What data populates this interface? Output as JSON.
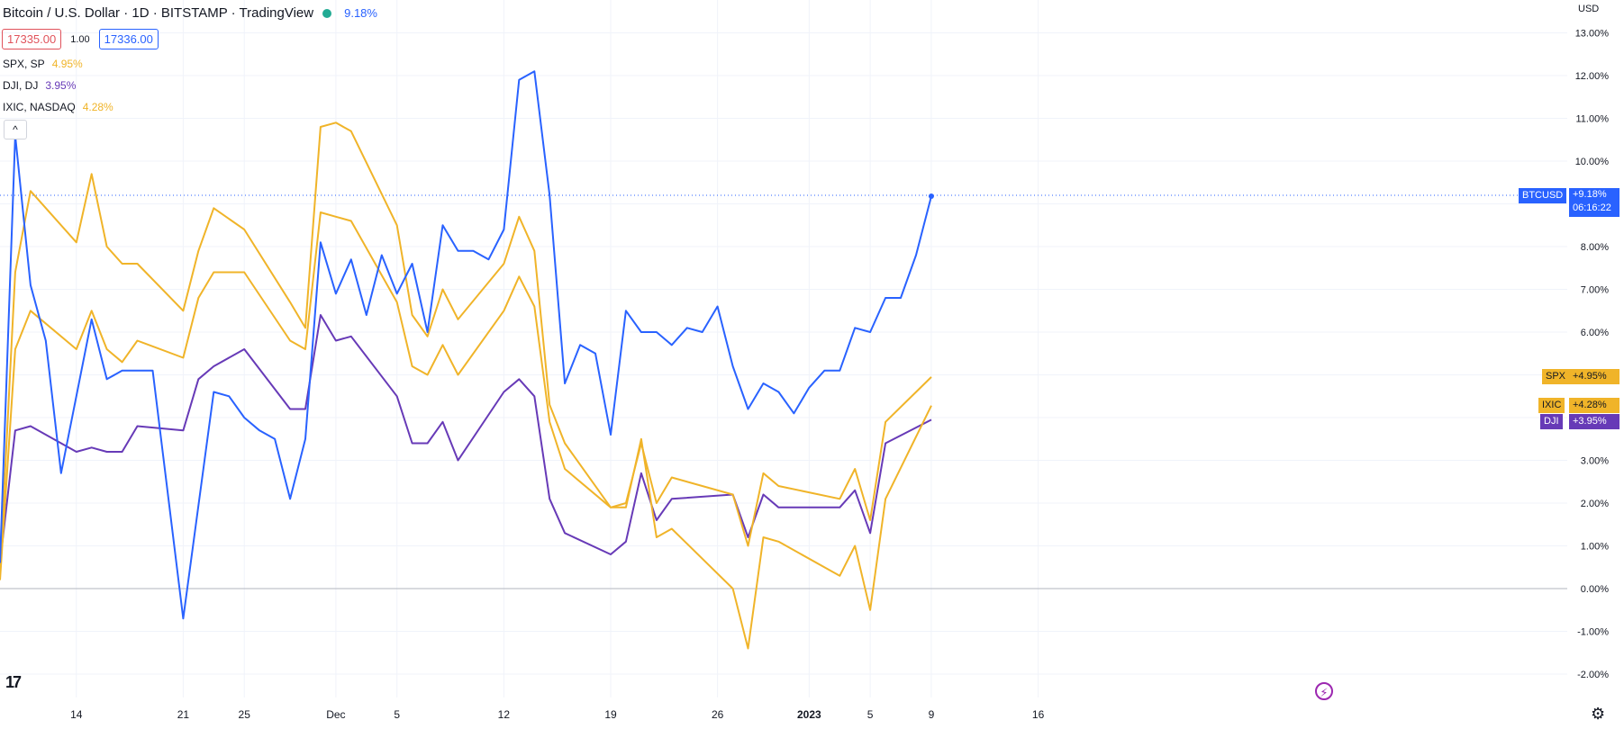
{
  "header": {
    "title": "Bitcoin / U.S. Dollar · 1D · BITSTAMP · TradingView",
    "change": "9.18%",
    "sell_price": "17335.00",
    "spread": "1.00",
    "buy_price": "17336.00",
    "currency": "USD"
  },
  "comparisons": [
    {
      "name": "SPX, SP",
      "value": "4.95%",
      "color": "#f0b429"
    },
    {
      "name": "DJI, DJ",
      "value": "3.95%",
      "color": "#673ab7"
    },
    {
      "name": "IXIC, NASDAQ",
      "value": "4.28%",
      "color": "#f0b429"
    }
  ],
  "tags": {
    "btc": {
      "symbol": "BTCUSD",
      "value": "+9.18%",
      "countdown": "06:16:22"
    },
    "spx": {
      "symbol": "SPX",
      "value": "+4.95%"
    },
    "ixic": {
      "symbol": "IXIC",
      "value": "+4.28%"
    },
    "dji": {
      "symbol": "DJI",
      "value": "+3.95%"
    }
  },
  "icons": {
    "collapse": "chevron-up-icon",
    "logo": "tradingview-logo-icon",
    "flash": "lightning-icon",
    "settings": "gear-icon"
  },
  "chart_data": {
    "type": "line",
    "title": "Bitcoin / U.S. Dollar · 1D · BITSTAMP · TradingView",
    "x_range": [
      "2022-11-09",
      "2023-01-21"
    ],
    "ylim": [
      -2.5,
      13.5
    ],
    "y_ticks": [
      13,
      12,
      11,
      10,
      9,
      8,
      7,
      6,
      5,
      4,
      3,
      2,
      1,
      0,
      -1,
      -2
    ],
    "y_tick_labels": [
      "13.00%",
      "12.00%",
      "11.00%",
      "10.00%",
      "9.00%",
      "8.00%",
      "7.00%",
      "6.00%",
      "5.00%",
      "4.00%",
      "3.00%",
      "2.00%",
      "1.00%",
      "0.00%",
      "-1.00%",
      "-2.00%"
    ],
    "x_ticks": [
      {
        "date": "2022-11-14",
        "label": "14"
      },
      {
        "date": "2022-11-21",
        "label": "21"
      },
      {
        "date": "2022-11-25",
        "label": "25"
      },
      {
        "date": "2022-12-01",
        "label": "Dec"
      },
      {
        "date": "2022-12-05",
        "label": "5"
      },
      {
        "date": "2022-12-12",
        "label": "12"
      },
      {
        "date": "2022-12-19",
        "label": "19"
      },
      {
        "date": "2022-12-26",
        "label": "26"
      },
      {
        "date": "2023-01-01",
        "label": "2023"
      },
      {
        "date": "2023-01-05",
        "label": "5"
      },
      {
        "date": "2023-01-09",
        "label": "9"
      },
      {
        "date": "2023-01-16",
        "label": "16"
      }
    ],
    "grid": true,
    "series": [
      {
        "name": "BTCUSD",
        "color": "#2962ff",
        "last_marker": true,
        "points": [
          [
            "2022-11-09",
            0.6
          ],
          [
            "2022-11-10",
            10.6
          ],
          [
            "2022-11-11",
            7.1
          ],
          [
            "2022-11-12",
            5.8
          ],
          [
            "2022-11-13",
            2.7
          ],
          [
            "2022-11-15",
            6.3
          ],
          [
            "2022-11-16",
            4.9
          ],
          [
            "2022-11-17",
            5.1
          ],
          [
            "2022-11-18",
            5.1
          ],
          [
            "2022-11-19",
            5.1
          ],
          [
            "2022-11-21",
            -0.7
          ],
          [
            "2022-11-23",
            4.6
          ],
          [
            "2022-11-24",
            4.5
          ],
          [
            "2022-11-25",
            4.0
          ],
          [
            "2022-11-26",
            3.7
          ],
          [
            "2022-11-27",
            3.5
          ],
          [
            "2022-11-28",
            2.1
          ],
          [
            "2022-11-29",
            3.5
          ],
          [
            "2022-11-30",
            8.1
          ],
          [
            "2022-12-01",
            6.9
          ],
          [
            "2022-12-02",
            7.7
          ],
          [
            "2022-12-03",
            6.4
          ],
          [
            "2022-12-04",
            7.8
          ],
          [
            "2022-12-05",
            6.9
          ],
          [
            "2022-12-06",
            7.6
          ],
          [
            "2022-12-07",
            6.0
          ],
          [
            "2022-12-08",
            8.5
          ],
          [
            "2022-12-09",
            7.9
          ],
          [
            "2022-12-10",
            7.9
          ],
          [
            "2022-12-11",
            7.7
          ],
          [
            "2022-12-12",
            8.4
          ],
          [
            "2022-12-13",
            11.9
          ],
          [
            "2022-12-14",
            12.1
          ],
          [
            "2022-12-15",
            9.2
          ],
          [
            "2022-12-16",
            4.8
          ],
          [
            "2022-12-17",
            5.7
          ],
          [
            "2022-12-18",
            5.5
          ],
          [
            "2022-12-19",
            3.6
          ],
          [
            "2022-12-20",
            6.5
          ],
          [
            "2022-12-21",
            6.0
          ],
          [
            "2022-12-22",
            6.0
          ],
          [
            "2022-12-23",
            5.7
          ],
          [
            "2022-12-24",
            6.1
          ],
          [
            "2022-12-25",
            6.0
          ],
          [
            "2022-12-26",
            6.6
          ],
          [
            "2022-12-27",
            5.2
          ],
          [
            "2022-12-28",
            4.2
          ],
          [
            "2022-12-29",
            4.8
          ],
          [
            "2022-12-30",
            4.6
          ],
          [
            "2022-12-31",
            4.1
          ],
          [
            "2023-01-01",
            4.7
          ],
          [
            "2023-01-02",
            5.1
          ],
          [
            "2023-01-03",
            5.1
          ],
          [
            "2023-01-04",
            6.1
          ],
          [
            "2023-01-05",
            6.0
          ],
          [
            "2023-01-06",
            6.8
          ],
          [
            "2023-01-07",
            6.8
          ],
          [
            "2023-01-08",
            7.8
          ],
          [
            "2023-01-09",
            9.18
          ]
        ]
      },
      {
        "name": "SPX",
        "color": "#f0b429",
        "points": [
          [
            "2022-11-09",
            0.4
          ],
          [
            "2022-11-10",
            7.4
          ],
          [
            "2022-11-11",
            9.3
          ],
          [
            "2022-11-14",
            8.1
          ],
          [
            "2022-11-15",
            9.7
          ],
          [
            "2022-11-16",
            8.0
          ],
          [
            "2022-11-17",
            7.6
          ],
          [
            "2022-11-18",
            7.6
          ],
          [
            "2022-11-21",
            6.5
          ],
          [
            "2022-11-22",
            7.9
          ],
          [
            "2022-11-23",
            8.9
          ],
          [
            "2022-11-25",
            8.4
          ],
          [
            "2022-11-28",
            6.7
          ],
          [
            "2022-11-29",
            6.1
          ],
          [
            "2022-11-30",
            10.8
          ],
          [
            "2022-12-01",
            10.9
          ],
          [
            "2022-12-02",
            10.7
          ],
          [
            "2022-12-05",
            8.5
          ],
          [
            "2022-12-06",
            6.4
          ],
          [
            "2022-12-07",
            5.9
          ],
          [
            "2022-12-08",
            7.0
          ],
          [
            "2022-12-09",
            6.3
          ],
          [
            "2022-12-12",
            7.6
          ],
          [
            "2022-12-13",
            8.7
          ],
          [
            "2022-12-14",
            7.9
          ],
          [
            "2022-12-15",
            4.3
          ],
          [
            "2022-12-16",
            3.4
          ],
          [
            "2022-12-19",
            1.9
          ],
          [
            "2022-12-20",
            2.0
          ],
          [
            "2022-12-21",
            3.4
          ],
          [
            "2022-12-22",
            2.0
          ],
          [
            "2022-12-23",
            2.6
          ],
          [
            "2022-12-27",
            2.2
          ],
          [
            "2022-12-28",
            1.0
          ],
          [
            "2022-12-29",
            2.7
          ],
          [
            "2022-12-30",
            2.4
          ],
          [
            "2023-01-03",
            2.1
          ],
          [
            "2023-01-04",
            2.8
          ],
          [
            "2023-01-05",
            1.6
          ],
          [
            "2023-01-06",
            3.9
          ],
          [
            "2023-01-09",
            4.95
          ]
        ]
      },
      {
        "name": "IXIC",
        "color": "#f0b429",
        "points": [
          [
            "2022-11-09",
            0.2
          ],
          [
            "2022-11-10",
            5.6
          ],
          [
            "2022-11-11",
            6.5
          ],
          [
            "2022-11-14",
            5.6
          ],
          [
            "2022-11-15",
            6.5
          ],
          [
            "2022-11-16",
            5.6
          ],
          [
            "2022-11-17",
            5.3
          ],
          [
            "2022-11-18",
            5.8
          ],
          [
            "2022-11-21",
            5.4
          ],
          [
            "2022-11-22",
            6.8
          ],
          [
            "2022-11-23",
            7.4
          ],
          [
            "2022-11-25",
            7.4
          ],
          [
            "2022-11-28",
            5.8
          ],
          [
            "2022-11-29",
            5.6
          ],
          [
            "2022-11-30",
            8.8
          ],
          [
            "2022-12-01",
            8.7
          ],
          [
            "2022-12-02",
            8.6
          ],
          [
            "2022-12-05",
            6.7
          ],
          [
            "2022-12-06",
            5.2
          ],
          [
            "2022-12-07",
            5.0
          ],
          [
            "2022-12-08",
            5.7
          ],
          [
            "2022-12-09",
            5.0
          ],
          [
            "2022-12-12",
            6.5
          ],
          [
            "2022-12-13",
            7.3
          ],
          [
            "2022-12-14",
            6.6
          ],
          [
            "2022-12-15",
            3.9
          ],
          [
            "2022-12-16",
            2.8
          ],
          [
            "2022-12-19",
            1.9
          ],
          [
            "2022-12-20",
            1.9
          ],
          [
            "2022-12-21",
            3.5
          ],
          [
            "2022-12-22",
            1.2
          ],
          [
            "2022-12-23",
            1.4
          ],
          [
            "2022-12-27",
            0.0
          ],
          [
            "2022-12-28",
            -1.4
          ],
          [
            "2022-12-29",
            1.2
          ],
          [
            "2022-12-30",
            1.1
          ],
          [
            "2023-01-03",
            0.3
          ],
          [
            "2023-01-04",
            1.0
          ],
          [
            "2023-01-05",
            -0.5
          ],
          [
            "2023-01-06",
            2.1
          ],
          [
            "2023-01-09",
            4.28
          ]
        ]
      },
      {
        "name": "DJI",
        "color": "#673ab7",
        "points": [
          [
            "2022-11-09",
            0.6
          ],
          [
            "2022-11-10",
            3.7
          ],
          [
            "2022-11-11",
            3.8
          ],
          [
            "2022-11-14",
            3.2
          ],
          [
            "2022-11-15",
            3.3
          ],
          [
            "2022-11-16",
            3.2
          ],
          [
            "2022-11-17",
            3.2
          ],
          [
            "2022-11-18",
            3.8
          ],
          [
            "2022-11-21",
            3.7
          ],
          [
            "2022-11-22",
            4.9
          ],
          [
            "2022-11-23",
            5.2
          ],
          [
            "2022-11-25",
            5.6
          ],
          [
            "2022-11-28",
            4.2
          ],
          [
            "2022-11-29",
            4.2
          ],
          [
            "2022-11-30",
            6.4
          ],
          [
            "2022-12-01",
            5.8
          ],
          [
            "2022-12-02",
            5.9
          ],
          [
            "2022-12-05",
            4.5
          ],
          [
            "2022-12-06",
            3.4
          ],
          [
            "2022-12-07",
            3.4
          ],
          [
            "2022-12-08",
            3.9
          ],
          [
            "2022-12-09",
            3.0
          ],
          [
            "2022-12-12",
            4.6
          ],
          [
            "2022-12-13",
            4.9
          ],
          [
            "2022-12-14",
            4.5
          ],
          [
            "2022-12-15",
            2.1
          ],
          [
            "2022-12-16",
            1.3
          ],
          [
            "2022-12-19",
            0.8
          ],
          [
            "2022-12-20",
            1.1
          ],
          [
            "2022-12-21",
            2.7
          ],
          [
            "2022-12-22",
            1.6
          ],
          [
            "2022-12-23",
            2.1
          ],
          [
            "2022-12-27",
            2.2
          ],
          [
            "2022-12-28",
            1.2
          ],
          [
            "2022-12-29",
            2.2
          ],
          [
            "2022-12-30",
            1.9
          ],
          [
            "2023-01-03",
            1.9
          ],
          [
            "2023-01-04",
            2.3
          ],
          [
            "2023-01-05",
            1.3
          ],
          [
            "2023-01-06",
            3.4
          ],
          [
            "2023-01-09",
            3.95
          ]
        ]
      }
    ]
  }
}
